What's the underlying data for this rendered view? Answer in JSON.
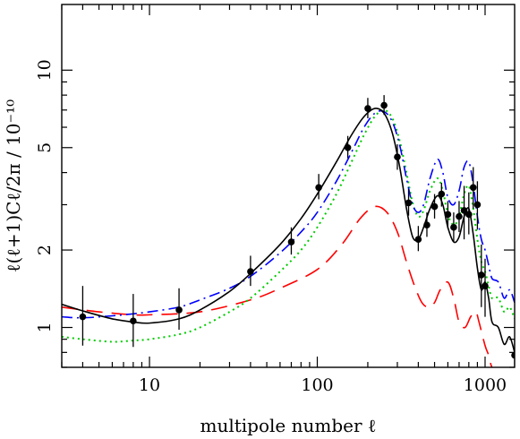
{
  "chart_data": {
    "type": "line",
    "xlabel": "multipole number ℓ",
    "ylabel": "ℓ(ℓ+1)Cℓ/2π / 10⁻¹⁰",
    "xscale": "log",
    "yscale": "log",
    "xlim": [
      3,
      1500
    ],
    "ylim": [
      0.7,
      18
    ],
    "x_ticks": [
      10,
      100,
      1000
    ],
    "x_tick_labels": [
      "10",
      "100",
      "1000"
    ],
    "y_ticks": [
      1,
      2,
      5,
      10
    ],
    "y_tick_labels": [
      "1",
      "2",
      "5",
      "10"
    ],
    "grid": false,
    "legend": "none",
    "series": [
      {
        "style": "solid",
        "color": "#000000",
        "x": [
          3,
          4,
          6,
          8,
          10,
          15,
          20,
          30,
          40,
          60,
          80,
          100,
          130,
          160,
          190,
          220,
          250,
          280,
          310,
          340,
          370,
          400,
          430,
          470,
          520,
          560,
          600,
          650,
          700,
          750,
          800,
          850,
          900,
          950,
          1000,
          1050,
          1100,
          1200,
          1300,
          1400,
          1500
        ],
        "y": [
          1.23,
          1.16,
          1.08,
          1.05,
          1.04,
          1.08,
          1.17,
          1.38,
          1.62,
          2.1,
          2.65,
          3.3,
          4.4,
          5.6,
          6.6,
          7.1,
          6.8,
          5.7,
          4.2,
          2.9,
          2.25,
          2.2,
          2.45,
          2.9,
          3.25,
          3.0,
          2.45,
          2.15,
          2.25,
          2.7,
          2.9,
          2.3,
          1.7,
          1.4,
          1.5,
          1.3,
          1.05,
          1.0,
          0.86,
          0.92,
          0.8
        ]
      },
      {
        "style": "dashed",
        "color": "#ff0000",
        "x": [
          3,
          5,
          8,
          10,
          20,
          40,
          60,
          100,
          140,
          180,
          220,
          260,
          300,
          340,
          380,
          420,
          460,
          500,
          540,
          600,
          650,
          700,
          760,
          820,
          880,
          920,
          1000,
          1050,
          1100,
          1200,
          1300,
          1400,
          1500
        ],
        "y": [
          1.2,
          1.15,
          1.12,
          1.12,
          1.15,
          1.28,
          1.42,
          1.68,
          2.1,
          2.65,
          2.95,
          2.8,
          2.35,
          1.8,
          1.45,
          1.25,
          1.2,
          1.25,
          1.4,
          1.5,
          1.3,
          1.05,
          1.0,
          1.1,
          1.15,
          1.05,
          0.85,
          0.78,
          0.7,
          0.68,
          0.72,
          0.66,
          0.62
        ]
      },
      {
        "style": "dash-dot",
        "color": "#0000ff",
        "x": [
          3,
          4,
          6,
          8,
          10,
          15,
          20,
          30,
          40,
          60,
          80,
          100,
          130,
          160,
          190,
          220,
          250,
          280,
          310,
          340,
          370,
          400,
          430,
          470,
          520,
          560,
          600,
          650,
          700,
          750,
          800,
          850,
          900,
          950,
          1000,
          1050,
          1100,
          1200,
          1300,
          1400,
          1500
        ],
        "y": [
          1.1,
          1.09,
          1.11,
          1.13,
          1.15,
          1.2,
          1.28,
          1.42,
          1.58,
          1.95,
          2.35,
          2.8,
          3.7,
          4.8,
          6.0,
          6.8,
          6.9,
          6.3,
          5.1,
          3.8,
          3.0,
          2.8,
          3.0,
          3.8,
          4.5,
          4.0,
          3.2,
          3.0,
          3.4,
          4.2,
          4.4,
          3.6,
          2.7,
          2.2,
          2.0,
          1.75,
          1.55,
          1.5,
          1.3,
          1.4,
          1.25
        ]
      },
      {
        "style": "dotted",
        "color": "#00cc00",
        "x": [
          3,
          4,
          6,
          8,
          10,
          15,
          20,
          30,
          40,
          60,
          80,
          100,
          130,
          160,
          190,
          220,
          250,
          280,
          310,
          340,
          370,
          400,
          430,
          470,
          520,
          560,
          600,
          650,
          700,
          750,
          800,
          850,
          900,
          950,
          1000,
          1050,
          1100,
          1200,
          1300,
          1400,
          1500
        ],
        "y": [
          0.92,
          0.9,
          0.88,
          0.89,
          0.9,
          0.94,
          1.0,
          1.15,
          1.3,
          1.65,
          2.0,
          2.45,
          3.3,
          4.4,
          5.6,
          6.6,
          7.0,
          6.5,
          5.3,
          4.0,
          3.05,
          2.7,
          2.85,
          3.4,
          3.8,
          3.4,
          2.75,
          2.5,
          2.7,
          3.3,
          3.55,
          2.9,
          2.2,
          1.8,
          1.65,
          1.45,
          1.3,
          1.3,
          1.15,
          1.2,
          1.08
        ]
      }
    ],
    "points": {
      "x": [
        4,
        8,
        15,
        40,
        70,
        102,
        152,
        200,
        250,
        300,
        350,
        400,
        450,
        500,
        550,
        600,
        650,
        700,
        750,
        800,
        850,
        900,
        950,
        1000,
        1500
      ],
      "y": [
        1.1,
        1.06,
        1.17,
        1.65,
        2.15,
        3.5,
        5.0,
        7.1,
        7.3,
        4.6,
        3.05,
        2.2,
        2.5,
        2.95,
        3.3,
        2.75,
        2.45,
        2.7,
        2.85,
        2.75,
        3.5,
        3.0,
        1.6,
        1.45,
        0.78
      ],
      "err_low": [
        0.85,
        0.84,
        0.98,
        1.45,
        1.92,
        3.15,
        4.55,
        6.5,
        6.7,
        4.1,
        2.72,
        1.98,
        2.25,
        2.65,
        2.95,
        2.42,
        2.15,
        2.35,
        2.2,
        2.3,
        2.9,
        2.4,
        1.2,
        1.1,
        0.7
      ],
      "err_high": [
        1.45,
        1.35,
        1.42,
        1.9,
        2.45,
        3.95,
        5.55,
        7.8,
        8.0,
        5.15,
        3.45,
        2.48,
        2.8,
        3.3,
        3.65,
        3.1,
        2.8,
        3.1,
        3.55,
        3.35,
        4.2,
        3.7,
        2.1,
        1.85,
        0.9
      ]
    }
  }
}
